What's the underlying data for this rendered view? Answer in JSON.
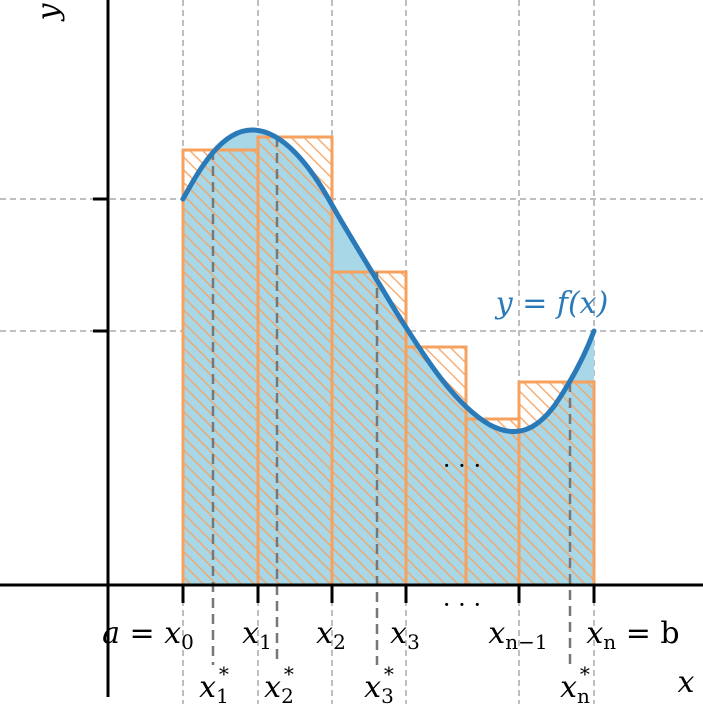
{
  "axes": {
    "x_label": "x",
    "y_label": "y"
  },
  "curve": {
    "label": "y = f(x)",
    "color": "#2a7ab9",
    "fill_color": "#a8d8e8"
  },
  "rectangles": {
    "edge_color": "#f7a15e",
    "hatch_color": "#f7a15e"
  },
  "partition_labels": [
    {
      "base": "a = x",
      "sub": "0"
    },
    {
      "base": "x",
      "sub": "1"
    },
    {
      "base": "x",
      "sub": "2"
    },
    {
      "base": "x",
      "sub": "3"
    },
    {
      "base": "x",
      "sub": "n−1"
    },
    {
      "base": "x",
      "sub": "n",
      "suffix": " = b"
    }
  ],
  "sample_labels": [
    {
      "base": "x",
      "sub": "1",
      "sup": "*"
    },
    {
      "base": "x",
      "sub": "2",
      "sup": "*"
    },
    {
      "base": "x",
      "sub": "3",
      "sup": "*"
    },
    {
      "base": "x",
      "sub": "n",
      "sup": "*"
    }
  ],
  "ellipsis_axis": "· · ·",
  "ellipsis_inside": "· · ·"
}
